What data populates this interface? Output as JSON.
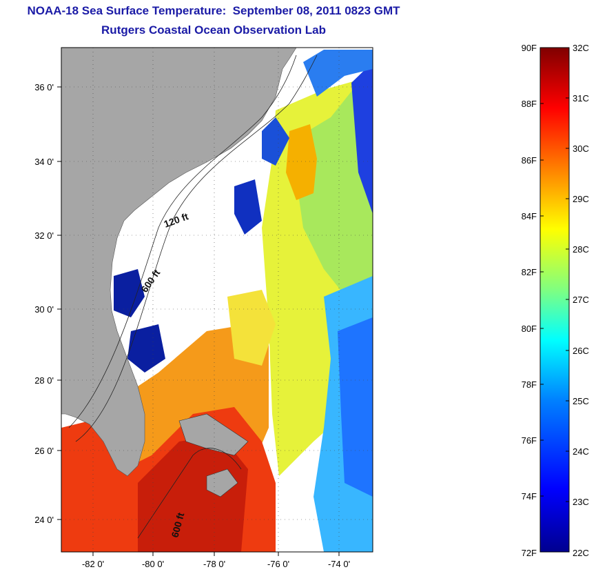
{
  "title": "NOAA-18 Sea Surface Temperature:  September 08, 2011 0823 GMT",
  "subtitle": "Rutgers Coastal Ocean Observation Lab",
  "map": {
    "lat_ticks": [
      "36 0'",
      "34 0'",
      "32 0'",
      "30 0'",
      "28 0'",
      "26 0'",
      "24 0'"
    ],
    "lon_ticks": [
      "-82 0'",
      "-80 0'",
      "-78 0'",
      "-76 0'",
      "-74 0'"
    ],
    "contour_labels": [
      "120 ft",
      "600 ft",
      "600 ft"
    ],
    "land_color": "#a6a6a6",
    "no_data_color": "#ffffff"
  },
  "colorbar": {
    "fahrenheit": [
      "90F",
      "88F",
      "86F",
      "84F",
      "82F",
      "80F",
      "78F",
      "76F",
      "74F",
      "72F"
    ],
    "celsius": [
      "32C",
      "31C",
      "30C",
      "29C",
      "28C",
      "27C",
      "26C",
      "25C",
      "24C",
      "23C",
      "22C"
    ],
    "colors": [
      "#00008f",
      "#0000ff",
      "#0080ff",
      "#00ffff",
      "#80ff80",
      "#ffff00",
      "#ff8000",
      "#ff0000",
      "#800000"
    ]
  }
}
